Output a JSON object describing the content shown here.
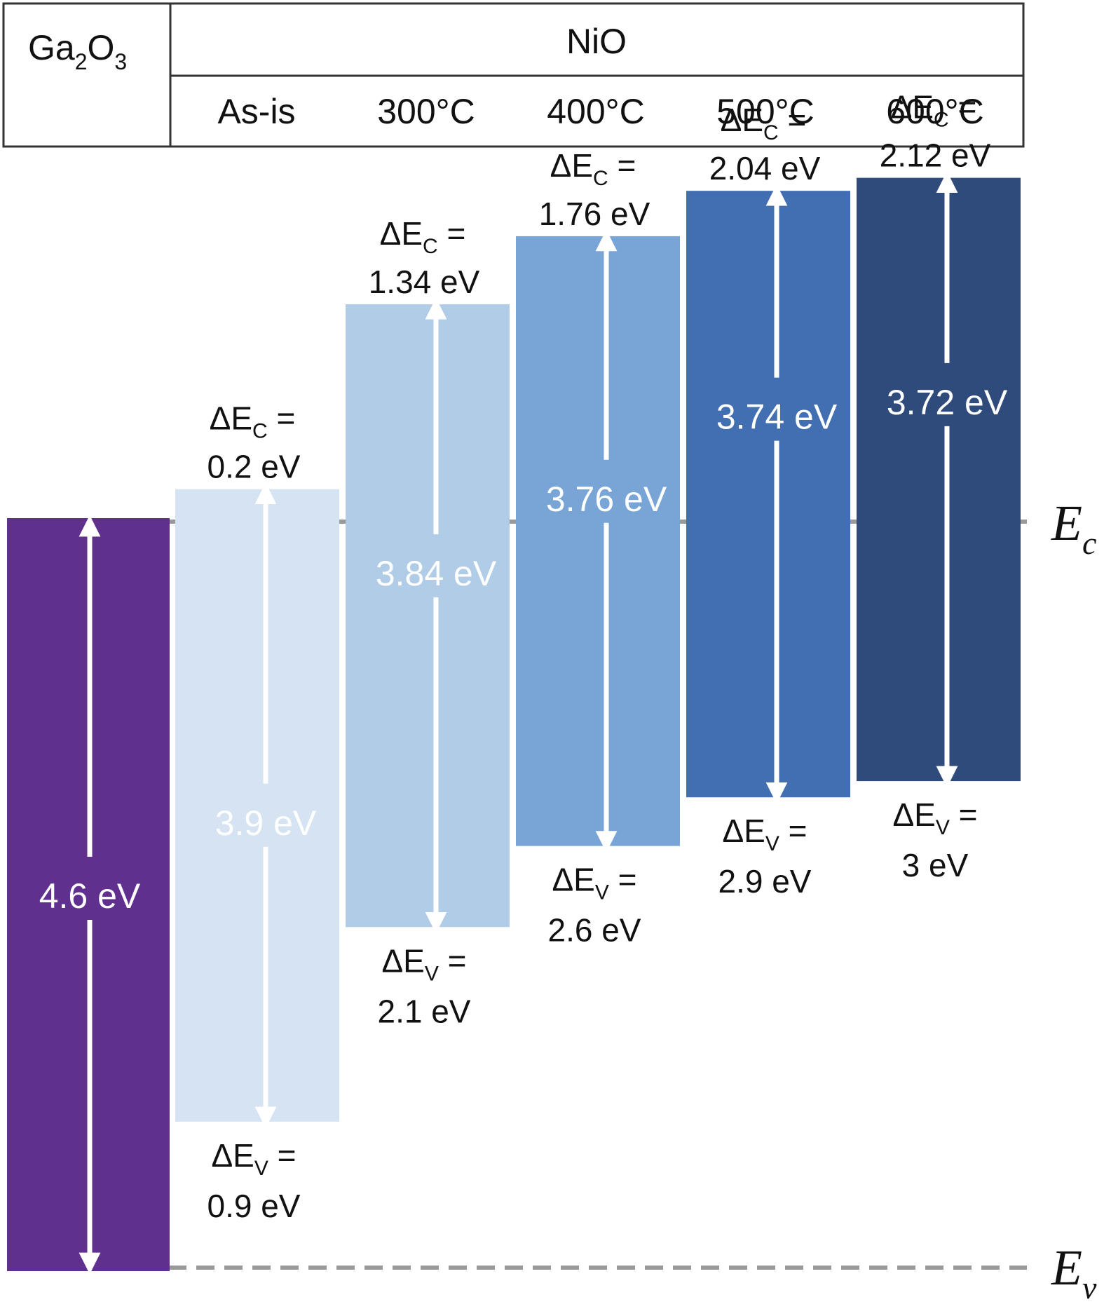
{
  "header": {
    "substrate": {
      "base": "Ga",
      "sub1": "2",
      "mid": "O",
      "sub2": "3"
    },
    "film": "NiO",
    "conditions": [
      "As-is",
      "300°C",
      "400°C",
      "500°C",
      "600°C"
    ]
  },
  "energy_levels": {
    "ec": {
      "base": "E",
      "sub": "c"
    },
    "ev": {
      "base": "E",
      "sub": "v"
    }
  },
  "substrate_band": {
    "gap": "4.6 eV",
    "gap_value": 4.6,
    "color": "#60308f"
  },
  "nio_bands": [
    {
      "condition": "As-is",
      "color": "#d5e3f3",
      "gap_label_color": "#ffffff",
      "gap": "3.9 eV",
      "gap_value": 3.9,
      "dEc_label": {
        "sym": "ΔE",
        "sub": "C",
        "eq": " ="
      },
      "dEc": "0.2 eV",
      "dEc_value": 0.2,
      "dEv_label": {
        "sym": "ΔE",
        "sub": "V",
        "eq": " ="
      },
      "dEv": "0.9 eV",
      "dEv_value": 0.9
    },
    {
      "condition": "300°C",
      "color": "#b0cce6",
      "gap_label_color": "#ffffff",
      "gap": "3.84 eV",
      "gap_value": 3.84,
      "dEc_label": {
        "sym": "ΔE",
        "sub": "C",
        "eq": " ="
      },
      "dEc": "1.34 eV",
      "dEc_value": 1.34,
      "dEv_label": {
        "sym": "ΔE",
        "sub": "V",
        "eq": " ="
      },
      "dEv": "2.1 eV",
      "dEv_value": 2.1
    },
    {
      "condition": "400°C",
      "color": "#78a5d6",
      "gap_label_color": "#ffffff",
      "gap": "3.76 eV",
      "gap_value": 3.76,
      "dEc_label": {
        "sym": "ΔE",
        "sub": "C",
        "eq": " ="
      },
      "dEc": "1.76 eV",
      "dEc_value": 1.76,
      "dEv_label": {
        "sym": "ΔE",
        "sub": "V",
        "eq": " ="
      },
      "dEv": "2.6 eV",
      "dEv_value": 2.6
    },
    {
      "condition": "500°C",
      "color": "#426eb2",
      "gap_label_color": "#ffffff",
      "gap": "3.74 eV",
      "gap_value": 3.74,
      "dEc_label": {
        "sym": "ΔE",
        "sub": "C",
        "eq": " ="
      },
      "dEc": "2.04 eV",
      "dEc_value": 2.04,
      "dEv_label": {
        "sym": "ΔE",
        "sub": "V",
        "eq": " ="
      },
      "dEv": "2.9 eV",
      "dEv_value": 2.9
    },
    {
      "condition": "600°C",
      "color": "#2f4b7c",
      "gap_label_color": "#ffffff",
      "gap": "3.72 eV",
      "gap_value": 3.72,
      "dEc_label": {
        "sym": "ΔE",
        "sub": "C",
        "eq": " ="
      },
      "dEc": "2.12 eV",
      "dEc_value": 2.12,
      "dEv_label": {
        "sym": "ΔE",
        "sub": "V",
        "eq": " ="
      },
      "dEv": "3 eV",
      "dEv_value": 3.0
    }
  ],
  "colors": {
    "dash_line": "#999999",
    "arrow": "#ffffff",
    "table_border": "#333333"
  }
}
